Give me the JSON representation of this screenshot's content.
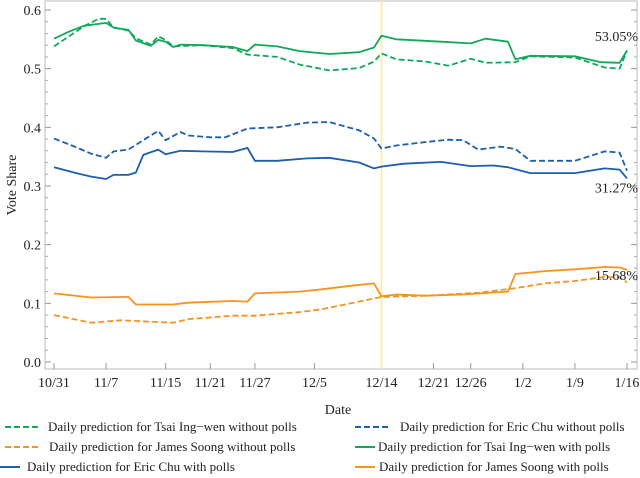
{
  "chart_data": {
    "type": "line",
    "title": "",
    "xlabel": "Date",
    "ylabel": "Vote Share",
    "ylim": [
      0,
      0.6
    ],
    "xlim_days": [
      0,
      77
    ],
    "yticks": [
      "0.0",
      "0.1",
      "0.2",
      "0.3",
      "0.4",
      "0.5",
      "0.6"
    ],
    "ytick_values": [
      0,
      0.1,
      0.2,
      0.3,
      0.4,
      0.5,
      0.6
    ],
    "xticks": [
      {
        "label": "10/31",
        "day": 0
      },
      {
        "label": "11/7",
        "day": 7
      },
      {
        "label": "11/15",
        "day": 15
      },
      {
        "label": "11/21",
        "day": 21
      },
      {
        "label": "11/27",
        "day": 27
      },
      {
        "label": "12/5",
        "day": 35
      },
      {
        "label": "12/14",
        "day": 44
      },
      {
        "label": "12/21",
        "day": 51
      },
      {
        "label": "12/26",
        "day": 56
      },
      {
        "label": "1/2",
        "day": 63
      },
      {
        "label": "1/9",
        "day": 70
      },
      {
        "label": "1/16",
        "day": 77
      }
    ],
    "vertical_marker_day": 44,
    "marker_color": "#fff27a",
    "annotations": [
      {
        "text": "53.05%",
        "day": 77,
        "value": 0.5305
      },
      {
        "text": "31.27%",
        "day": 77,
        "value": 0.3127
      },
      {
        "text": "15.68%",
        "day": 77,
        "value": 0.1568
      }
    ],
    "series": [
      {
        "name": "Daily prediction for Tsai Ing−wen without polls",
        "color": "#10a85a",
        "dash": true,
        "x": [
          0,
          2,
          4,
          6,
          7,
          8,
          10,
          11,
          13,
          14,
          15,
          16,
          20,
          24,
          26,
          30,
          33,
          37,
          41,
          43,
          44,
          46,
          50,
          53,
          56,
          58,
          62,
          64,
          70,
          74,
          76,
          77
        ],
        "y": [
          0.538,
          0.555,
          0.572,
          0.585,
          0.585,
          0.57,
          0.565,
          0.552,
          0.541,
          0.555,
          0.549,
          0.538,
          0.54,
          0.535,
          0.524,
          0.52,
          0.507,
          0.497,
          0.501,
          0.512,
          0.526,
          0.516,
          0.512,
          0.505,
          0.517,
          0.51,
          0.511,
          0.521,
          0.519,
          0.502,
          0.5,
          0.531
        ]
      },
      {
        "name": "Daily prediction for Eric Chu without polls",
        "color": "#1b5fae",
        "dash": true,
        "x": [
          0,
          3,
          5,
          7,
          8,
          10,
          12,
          14,
          15,
          17,
          18,
          21,
          23,
          26,
          30,
          34,
          37,
          41,
          43,
          44,
          46,
          50,
          53,
          55,
          57,
          60,
          62,
          64,
          70,
          74,
          76,
          77
        ],
        "y": [
          0.381,
          0.366,
          0.355,
          0.348,
          0.359,
          0.362,
          0.378,
          0.394,
          0.378,
          0.392,
          0.386,
          0.383,
          0.383,
          0.398,
          0.4,
          0.408,
          0.409,
          0.395,
          0.381,
          0.364,
          0.369,
          0.375,
          0.379,
          0.378,
          0.362,
          0.367,
          0.363,
          0.343,
          0.343,
          0.359,
          0.357,
          0.326
        ]
      },
      {
        "name": "Daily prediction for James Soong without polls",
        "color": "#f7931e",
        "dash": true,
        "x": [
          0,
          5,
          9,
          16,
          18,
          24,
          27,
          33,
          36,
          41,
          44,
          50,
          57,
          62,
          66,
          70,
          74,
          76,
          77
        ],
        "y": [
          0.08,
          0.067,
          0.071,
          0.067,
          0.073,
          0.079,
          0.079,
          0.085,
          0.09,
          0.103,
          0.111,
          0.113,
          0.118,
          0.126,
          0.134,
          0.138,
          0.145,
          0.144,
          0.136
        ]
      },
      {
        "name": "Daily prediction for Tsai Ing−wen with polls",
        "color": "#10a85a",
        "dash": false,
        "x": [
          0,
          2,
          4,
          7,
          8,
          10,
          11,
          13,
          14,
          15,
          16,
          17,
          20,
          24,
          26,
          27,
          30,
          33,
          37,
          41,
          43,
          44,
          46,
          52,
          56,
          58,
          61,
          62,
          64,
          70,
          73.5,
          76,
          77
        ],
        "y": [
          0.551,
          0.563,
          0.573,
          0.578,
          0.57,
          0.566,
          0.548,
          0.539,
          0.549,
          0.546,
          0.537,
          0.541,
          0.54,
          0.537,
          0.53,
          0.541,
          0.538,
          0.53,
          0.525,
          0.528,
          0.536,
          0.556,
          0.55,
          0.546,
          0.543,
          0.551,
          0.546,
          0.516,
          0.522,
          0.521,
          0.511,
          0.51,
          0.531
        ]
      },
      {
        "name": "Daily prediction for Eric Chu with polls",
        "color": "#1b5fae",
        "dash": false,
        "x": [
          0,
          3,
          5,
          7,
          8,
          10,
          11,
          12,
          14,
          15,
          17,
          20,
          24,
          26,
          27,
          30,
          34,
          37,
          41,
          43,
          44,
          47,
          52,
          56,
          59,
          61,
          64,
          70,
          74,
          76,
          77
        ],
        "y": [
          0.332,
          0.322,
          0.316,
          0.312,
          0.319,
          0.319,
          0.323,
          0.353,
          0.362,
          0.354,
          0.36,
          0.359,
          0.358,
          0.365,
          0.343,
          0.343,
          0.347,
          0.348,
          0.34,
          0.33,
          0.333,
          0.338,
          0.341,
          0.334,
          0.335,
          0.332,
          0.322,
          0.322,
          0.33,
          0.328,
          0.313
        ]
      },
      {
        "name": "Daily prediction for James Soong with polls",
        "color": "#f7931e",
        "dash": false,
        "x": [
          0,
          5,
          10,
          11,
          16,
          18,
          24,
          26,
          27,
          33,
          36,
          40,
          43,
          44,
          46,
          50,
          55,
          61,
          62,
          66,
          70,
          74,
          76,
          77
        ],
        "y": [
          0.117,
          0.11,
          0.111,
          0.098,
          0.098,
          0.101,
          0.104,
          0.103,
          0.117,
          0.12,
          0.124,
          0.13,
          0.134,
          0.112,
          0.115,
          0.113,
          0.115,
          0.12,
          0.15,
          0.155,
          0.158,
          0.162,
          0.161,
          0.157
        ]
      }
    ]
  }
}
